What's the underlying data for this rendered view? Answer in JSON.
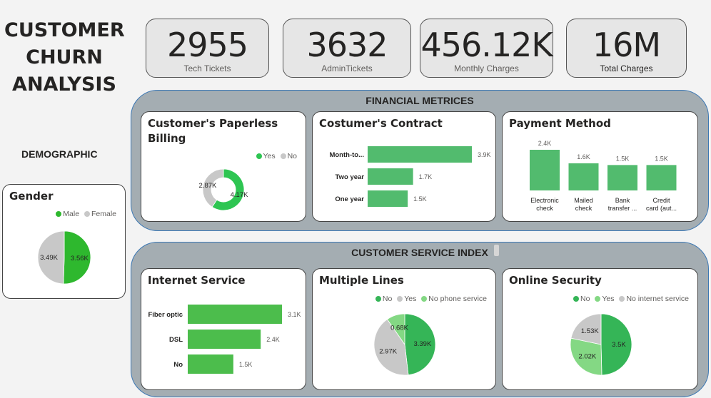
{
  "dashboard": {
    "title_lines": [
      "CUSTOMER",
      "CHURN",
      "ANALYSIS"
    ],
    "demographic_label": "DEMOGRAPHIC",
    "financial_label": "FINANCIAL METRICES",
    "service_label": "CUSTOMER SERVICE INDEX"
  },
  "kpis": [
    {
      "value": "2955",
      "label": "Tech Tickets"
    },
    {
      "value": "3632",
      "label": "AdminTickets"
    },
    {
      "value": "456.12K",
      "label": "Monthly Charges"
    },
    {
      "value": "16M",
      "label": "Total Charges"
    }
  ],
  "colors": {
    "green_dark": "#2eb82e",
    "green_mid": "#35b557",
    "green_bar": "#52bb6e",
    "green_light": "#84d884",
    "grey": "#c8c8c8"
  },
  "chart_data": [
    {
      "id": "gender",
      "type": "pie",
      "title": "Gender",
      "series": [
        {
          "name": "Male",
          "value": 3.56,
          "label": "3.56K",
          "color": "#2eb82e"
        },
        {
          "name": "Female",
          "value": 3.49,
          "label": "3.49K",
          "color": "#c8c8c8"
        }
      ],
      "legend": "top-right"
    },
    {
      "id": "paperless",
      "type": "pie",
      "donut": true,
      "title": "Customer's Paperless Billing",
      "series": [
        {
          "name": "Yes",
          "value": 4.17,
          "label": "4.17K",
          "color": "#2ec552"
        },
        {
          "name": "No",
          "value": 2.87,
          "label": "2.87K",
          "color": "#c8c8c8"
        }
      ],
      "legend": "top-right"
    },
    {
      "id": "contract",
      "type": "bar",
      "orientation": "horizontal",
      "title": "Costumer's Contract",
      "categories": [
        "Month-to...",
        "Two year",
        "One year"
      ],
      "values": [
        3.9,
        1.7,
        1.5
      ],
      "labels": [
        "3.9K",
        "1.7K",
        "1.5K"
      ],
      "color": "#52bb6e"
    },
    {
      "id": "payment",
      "type": "bar",
      "orientation": "vertical",
      "title": "Payment Method",
      "categories": [
        [
          "Electronic",
          "check"
        ],
        [
          "Mailed",
          "check"
        ],
        [
          "Bank",
          "transfer ..."
        ],
        [
          "Credit",
          "card (aut..."
        ]
      ],
      "values": [
        2.4,
        1.6,
        1.5,
        1.5
      ],
      "labels": [
        "2.4K",
        "1.6K",
        "1.5K",
        "1.5K"
      ],
      "color": "#52bb6e"
    },
    {
      "id": "internet",
      "type": "bar",
      "orientation": "horizontal",
      "title": "Internet Service",
      "categories": [
        "Fiber optic",
        "DSL",
        "No"
      ],
      "values": [
        3.1,
        2.4,
        1.5
      ],
      "labels": [
        "3.1K",
        "2.4K",
        "1.5K"
      ],
      "color": "#4cbd4c"
    },
    {
      "id": "multiple_lines",
      "type": "pie",
      "title": "Multiple Lines",
      "series": [
        {
          "name": "No",
          "value": 3.39,
          "label": "3.39K",
          "color": "#35b557"
        },
        {
          "name": "Yes",
          "value": 2.97,
          "label": "2.97K",
          "color": "#c8c8c8"
        },
        {
          "name": "No phone service",
          "value": 0.68,
          "label": "0.68K",
          "color": "#84d884"
        }
      ],
      "legend": "top-right"
    },
    {
      "id": "online_security",
      "type": "pie",
      "title": "Online Security",
      "series": [
        {
          "name": "No",
          "value": 3.5,
          "label": "3.5K",
          "color": "#35b557"
        },
        {
          "name": "Yes",
          "value": 2.02,
          "label": "2.02K",
          "color": "#84d884"
        },
        {
          "name": "No internet service",
          "value": 1.53,
          "label": "1.53K",
          "color": "#c8c8c8"
        }
      ],
      "legend": "top-right"
    }
  ]
}
